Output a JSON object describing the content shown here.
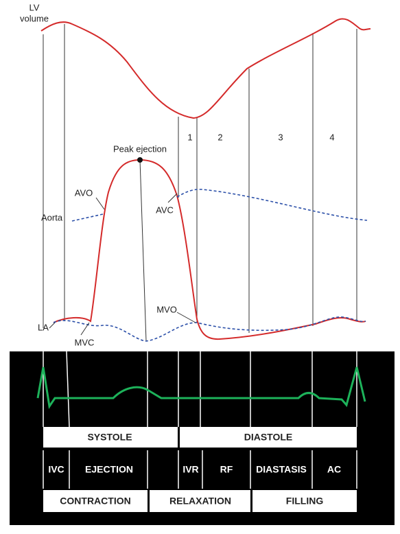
{
  "labels": {
    "lv_volume": [
      "LV",
      "volume"
    ],
    "aorta": "Aorta",
    "la": "LA",
    "avo": "AVO",
    "avc": "AVC",
    "mvo": "MVO",
    "mvc": "MVC",
    "peak_ejection": "Peak ejection"
  },
  "phase_numbers": [
    "1",
    "2",
    "3",
    "4"
  ],
  "timeline": {
    "row1": [
      "SYSTOLE",
      "DIASTOLE"
    ],
    "row2": [
      "IVC",
      "EJECTION",
      "IVR",
      "RF",
      "DIASTASIS",
      "AC"
    ],
    "row3": [
      "CONTRACTION",
      "RELAXATION",
      "FILLING"
    ]
  }
}
